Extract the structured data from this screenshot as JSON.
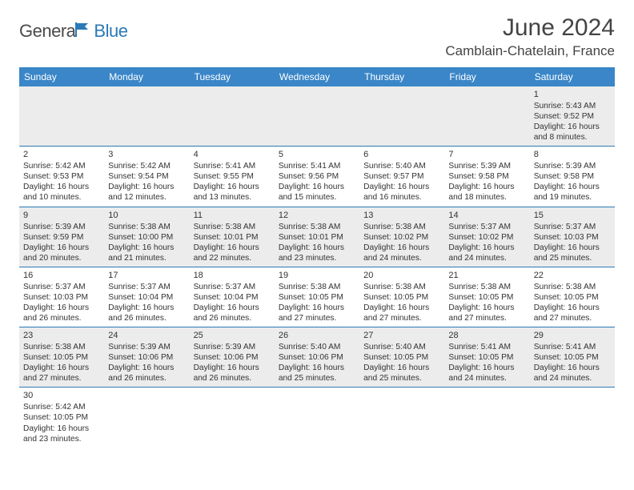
{
  "logo": {
    "part1": "Genera",
    "part2": "Blue"
  },
  "title": "June 2024",
  "location": "Camblain-Chatelain, France",
  "colors": {
    "header_bg": "#3a86c8",
    "header_text": "#ffffff",
    "alt_row_bg": "#ececec",
    "cell_border": "#2a7ab8",
    "logo_gray": "#4a4a4a",
    "logo_blue": "#2a7ab8"
  },
  "day_headers": [
    "Sunday",
    "Monday",
    "Tuesday",
    "Wednesday",
    "Thursday",
    "Friday",
    "Saturday"
  ],
  "weeks": [
    {
      "alt": true,
      "cells": [
        null,
        null,
        null,
        null,
        null,
        null,
        {
          "n": "1",
          "sr": "5:43 AM",
          "ss": "9:52 PM",
          "dl": "16 hours and 8 minutes."
        }
      ]
    },
    {
      "alt": false,
      "cells": [
        {
          "n": "2",
          "sr": "5:42 AM",
          "ss": "9:53 PM",
          "dl": "16 hours and 10 minutes."
        },
        {
          "n": "3",
          "sr": "5:42 AM",
          "ss": "9:54 PM",
          "dl": "16 hours and 12 minutes."
        },
        {
          "n": "4",
          "sr": "5:41 AM",
          "ss": "9:55 PM",
          "dl": "16 hours and 13 minutes."
        },
        {
          "n": "5",
          "sr": "5:41 AM",
          "ss": "9:56 PM",
          "dl": "16 hours and 15 minutes."
        },
        {
          "n": "6",
          "sr": "5:40 AM",
          "ss": "9:57 PM",
          "dl": "16 hours and 16 minutes."
        },
        {
          "n": "7",
          "sr": "5:39 AM",
          "ss": "9:58 PM",
          "dl": "16 hours and 18 minutes."
        },
        {
          "n": "8",
          "sr": "5:39 AM",
          "ss": "9:58 PM",
          "dl": "16 hours and 19 minutes."
        }
      ]
    },
    {
      "alt": true,
      "cells": [
        {
          "n": "9",
          "sr": "5:39 AM",
          "ss": "9:59 PM",
          "dl": "16 hours and 20 minutes."
        },
        {
          "n": "10",
          "sr": "5:38 AM",
          "ss": "10:00 PM",
          "dl": "16 hours and 21 minutes."
        },
        {
          "n": "11",
          "sr": "5:38 AM",
          "ss": "10:01 PM",
          "dl": "16 hours and 22 minutes."
        },
        {
          "n": "12",
          "sr": "5:38 AM",
          "ss": "10:01 PM",
          "dl": "16 hours and 23 minutes."
        },
        {
          "n": "13",
          "sr": "5:38 AM",
          "ss": "10:02 PM",
          "dl": "16 hours and 24 minutes."
        },
        {
          "n": "14",
          "sr": "5:37 AM",
          "ss": "10:02 PM",
          "dl": "16 hours and 24 minutes."
        },
        {
          "n": "15",
          "sr": "5:37 AM",
          "ss": "10:03 PM",
          "dl": "16 hours and 25 minutes."
        }
      ]
    },
    {
      "alt": false,
      "cells": [
        {
          "n": "16",
          "sr": "5:37 AM",
          "ss": "10:03 PM",
          "dl": "16 hours and 26 minutes."
        },
        {
          "n": "17",
          "sr": "5:37 AM",
          "ss": "10:04 PM",
          "dl": "16 hours and 26 minutes."
        },
        {
          "n": "18",
          "sr": "5:37 AM",
          "ss": "10:04 PM",
          "dl": "16 hours and 26 minutes."
        },
        {
          "n": "19",
          "sr": "5:38 AM",
          "ss": "10:05 PM",
          "dl": "16 hours and 27 minutes."
        },
        {
          "n": "20",
          "sr": "5:38 AM",
          "ss": "10:05 PM",
          "dl": "16 hours and 27 minutes."
        },
        {
          "n": "21",
          "sr": "5:38 AM",
          "ss": "10:05 PM",
          "dl": "16 hours and 27 minutes."
        },
        {
          "n": "22",
          "sr": "5:38 AM",
          "ss": "10:05 PM",
          "dl": "16 hours and 27 minutes."
        }
      ]
    },
    {
      "alt": true,
      "cells": [
        {
          "n": "23",
          "sr": "5:38 AM",
          "ss": "10:05 PM",
          "dl": "16 hours and 27 minutes."
        },
        {
          "n": "24",
          "sr": "5:39 AM",
          "ss": "10:06 PM",
          "dl": "16 hours and 26 minutes."
        },
        {
          "n": "25",
          "sr": "5:39 AM",
          "ss": "10:06 PM",
          "dl": "16 hours and 26 minutes."
        },
        {
          "n": "26",
          "sr": "5:40 AM",
          "ss": "10:06 PM",
          "dl": "16 hours and 25 minutes."
        },
        {
          "n": "27",
          "sr": "5:40 AM",
          "ss": "10:05 PM",
          "dl": "16 hours and 25 minutes."
        },
        {
          "n": "28",
          "sr": "5:41 AM",
          "ss": "10:05 PM",
          "dl": "16 hours and 24 minutes."
        },
        {
          "n": "29",
          "sr": "5:41 AM",
          "ss": "10:05 PM",
          "dl": "16 hours and 24 minutes."
        }
      ]
    },
    {
      "alt": false,
      "last": true,
      "cells": [
        {
          "n": "30",
          "sr": "5:42 AM",
          "ss": "10:05 PM",
          "dl": "16 hours and 23 minutes."
        },
        null,
        null,
        null,
        null,
        null,
        null
      ]
    }
  ],
  "labels": {
    "sunrise": "Sunrise: ",
    "sunset": "Sunset: ",
    "daylight": "Daylight: "
  }
}
